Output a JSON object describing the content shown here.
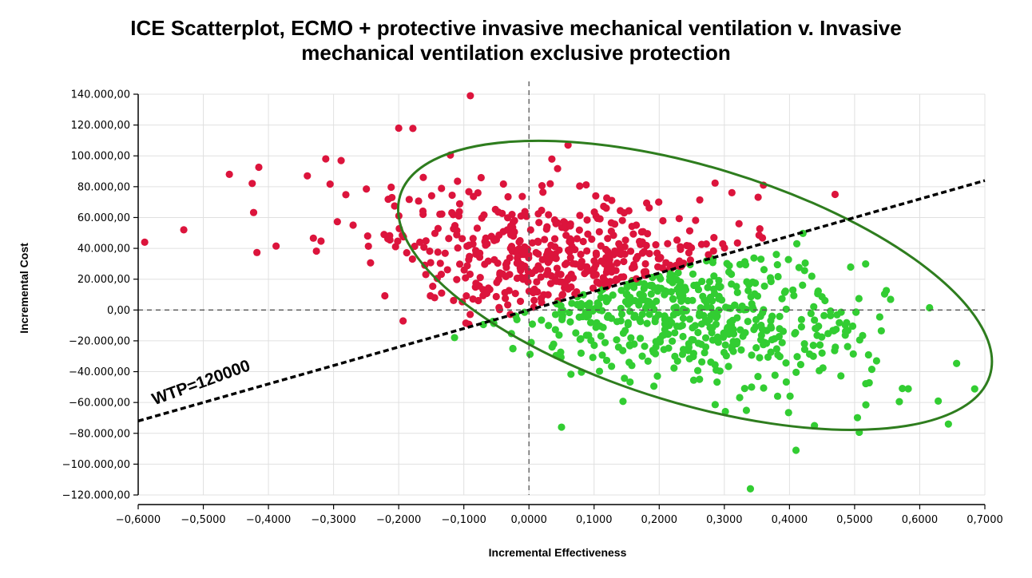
{
  "chart_data": {
    "type": "scatter",
    "title_line1": "ICE Scatterplot, ECMO + protective invasive mechanical ventilation v. Invasive",
    "title_line2": "mechanical ventilation exclusive protection",
    "xlabel": "Incremental Effectiveness",
    "ylabel": "Incremental Cost",
    "xlim": [
      -0.6,
      0.7
    ],
    "ylim": [
      -120000,
      140000
    ],
    "x_ticks": [
      -0.6,
      -0.5,
      -0.4,
      -0.3,
      -0.2,
      -0.1,
      0.0,
      0.1,
      0.2,
      0.3,
      0.4,
      0.5,
      0.6,
      0.7
    ],
    "x_tick_labels": [
      "−0,6000",
      "−0,5000",
      "−0,4000",
      "−0,3000",
      "−0,2000",
      "−0,1000",
      "0,0000",
      "0,1000",
      "0,2000",
      "0,3000",
      "0,4000",
      "0,5000",
      "0,6000",
      "0,7000"
    ],
    "y_ticks": [
      140000,
      120000,
      100000,
      80000,
      60000,
      40000,
      20000,
      0,
      -20000,
      -40000,
      -60000,
      -80000,
      -100000,
      -120000
    ],
    "y_tick_labels": [
      "140.000,00",
      "120.000,00",
      "100.000,00",
      "80.000,00",
      "60.000,00",
      "40.000,00",
      "20.000,00",
      "0,00",
      "−20.000,00",
      "−40.000,00",
      "−60.000,00",
      "−80.000,00",
      "−100.000,00",
      "−120.000,00"
    ],
    "grid": true,
    "wtp": {
      "label": "WTP=120000",
      "slope": 120000
    },
    "ellipse": {
      "center_x": 0.255,
      "center_y": 16000,
      "color": "#2e7d1e"
    },
    "colors": {
      "above_wtp": "#dc143c",
      "below_wtp": "#32cd32",
      "wtp_line": "#000000",
      "zero_lines": "#555555",
      "grid": "#e0e0e0"
    },
    "n_points": 1000,
    "series_summary": {
      "x_mean": 0.14,
      "x_sd": 0.19,
      "y_mean": 16000,
      "y_sd": 31000,
      "correlation": -0.5
    },
    "notable_points": [
      {
        "x": -0.59,
        "y": 44000
      },
      {
        "x": -0.53,
        "y": 52000
      },
      {
        "x": -0.46,
        "y": 88000
      },
      {
        "x": -0.09,
        "y": 139000
      },
      {
        "x": -0.2,
        "y": 118000
      },
      {
        "x": 0.34,
        "y": -116000
      },
      {
        "x": 0.644,
        "y": -74000
      },
      {
        "x": 0.41,
        "y": -91000
      },
      {
        "x": 0.05,
        "y": -76000
      },
      {
        "x": 0.47,
        "y": 75000
      },
      {
        "x": 0.36,
        "y": 81000
      },
      {
        "x": 0.06,
        "y": 107000
      }
    ]
  }
}
